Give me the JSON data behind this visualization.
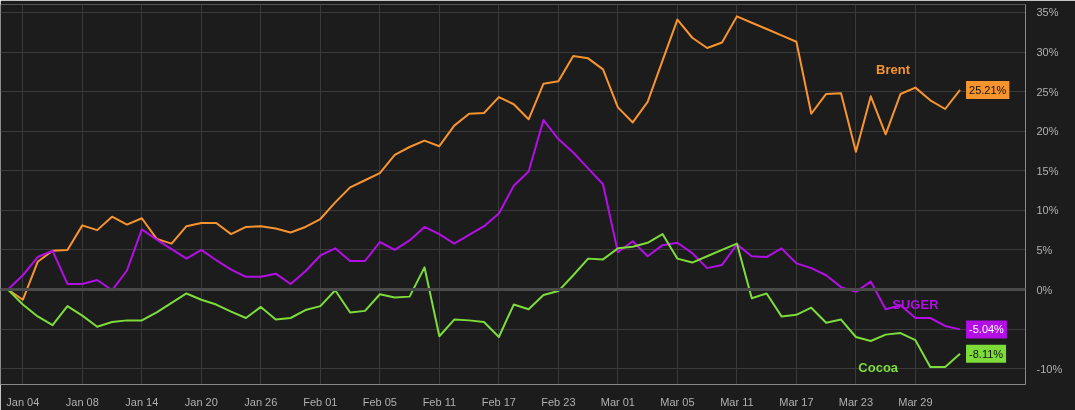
{
  "chart_data": {
    "type": "line",
    "categories": [
      null,
      "Jan 04",
      null,
      null,
      null,
      "Jan 08",
      null,
      null,
      null,
      "Jan 14",
      null,
      null,
      null,
      "Jan 20",
      null,
      null,
      null,
      "Jan 26",
      null,
      null,
      null,
      "Feb 01",
      null,
      null,
      null,
      "Feb 05",
      null,
      null,
      null,
      "Feb 11",
      null,
      null,
      null,
      "Feb 17",
      null,
      null,
      null,
      "Feb 23",
      null,
      null,
      null,
      "Mar 01",
      null,
      null,
      null,
      "Mar 05",
      null,
      null,
      null,
      "Mar 11",
      null,
      null,
      null,
      "Mar 17",
      null,
      null,
      null,
      "Mar 23",
      null,
      null,
      null,
      "Mar 29",
      null,
      null,
      null
    ],
    "series": [
      {
        "name": "Brent",
        "color": "#f7942e",
        "values": [
          0,
          -1.3,
          3.5,
          4.9,
          5.0,
          8.1,
          7.5,
          9.2,
          8.2,
          9.0,
          6.4,
          5.8,
          8.0,
          8.4,
          8.4,
          7.0,
          7.9,
          8.0,
          7.7,
          7.2,
          7.9,
          8.9,
          11.0,
          12.9,
          13.8,
          14.7,
          17.0,
          18.0,
          18.8,
          18.1,
          20.7,
          22.2,
          22.3,
          24.3,
          23.4,
          21.5,
          26.0,
          26.3,
          29.5,
          29.2,
          27.8,
          23.0,
          21.1,
          23.7,
          28.9,
          34.1,
          31.8,
          30.5,
          31.2,
          34.5,
          33.7,
          32.9,
          32.1,
          31.3,
          22.2,
          24.7,
          24.8,
          17.4,
          24.4,
          19.6,
          24.7,
          25.5,
          23.9,
          22.8,
          25.21
        ],
        "value_labels": [
          null,
          null,
          null,
          null,
          null,
          null,
          null,
          null,
          null,
          null,
          null,
          null,
          null,
          null,
          null,
          null,
          null,
          null,
          null,
          null,
          null,
          null,
          null,
          null,
          null,
          null,
          null,
          null,
          null,
          null,
          null,
          null,
          null,
          null,
          null,
          null,
          null,
          null,
          null,
          null,
          null,
          null,
          null,
          null,
          null,
          null,
          null,
          null,
          null,
          null,
          null,
          null,
          null,
          null,
          null,
          null,
          null,
          null,
          null,
          null,
          null,
          null,
          null,
          null,
          "25.21%"
        ]
      },
      {
        "name": "SUGER",
        "color": "#b40ee6",
        "values": [
          0,
          1.8,
          4.1,
          4.9,
          0.7,
          0.7,
          1.2,
          -0.1,
          2.4,
          7.6,
          6.3,
          5.1,
          3.9,
          5.0,
          3.7,
          2.5,
          1.6,
          1.6,
          2.0,
          0.7,
          2.3,
          4.3,
          5.2,
          3.6,
          3.6,
          6.0,
          5.0,
          6.2,
          7.9,
          7.0,
          5.8,
          6.9,
          8.0,
          9.6,
          13.1,
          14.9,
          21.4,
          19.0,
          17.3,
          15.3,
          13.3,
          4.7,
          6.1,
          4.2,
          5.6,
          5.9,
          4.6,
          2.7,
          3.1,
          5.7,
          4.2,
          4.1,
          5.2,
          3.3,
          2.7,
          1.8,
          0.3,
          -0.3,
          1.0,
          -2.5,
          -2.0,
          -3.6,
          -3.6,
          -4.6,
          -5.04
        ],
        "value_labels": [
          null,
          null,
          null,
          null,
          null,
          null,
          null,
          null,
          null,
          null,
          null,
          null,
          null,
          null,
          null,
          null,
          null,
          null,
          null,
          null,
          null,
          null,
          null,
          null,
          null,
          null,
          null,
          null,
          null,
          null,
          null,
          null,
          null,
          null,
          null,
          null,
          null,
          null,
          null,
          null,
          null,
          null,
          null,
          null,
          null,
          null,
          null,
          null,
          null,
          null,
          null,
          null,
          null,
          null,
          null,
          null,
          null,
          null,
          null,
          null,
          null,
          null,
          null,
          null,
          "-5.04%"
        ]
      },
      {
        "name": "Cocoa",
        "color": "#7ddc3a",
        "values": [
          0,
          -1.9,
          -3.4,
          -4.5,
          -2.1,
          -3.3,
          -4.7,
          -4.1,
          -3.9,
          -3.9,
          -2.9,
          -1.7,
          -0.5,
          -1.3,
          -1.9,
          -2.8,
          -3.6,
          -2.2,
          -3.8,
          -3.6,
          -2.6,
          -2.1,
          -0.1,
          -2.9,
          -2.7,
          -0.6,
          -1.0,
          -0.9,
          2.8,
          -5.9,
          -3.8,
          -3.9,
          -4.1,
          -6.0,
          -1.9,
          -2.5,
          -0.7,
          -0.2,
          1.8,
          3.9,
          3.8,
          5.2,
          5.4,
          5.9,
          7.0,
          3.9,
          3.4,
          4.2,
          5.0,
          5.8,
          -1.1,
          -0.5,
          -3.4,
          -3.2,
          -2.3,
          -4.2,
          -3.8,
          -6.0,
          -6.5,
          -5.7,
          -5.5,
          -6.4,
          -9.8,
          -9.8,
          -8.11
        ],
        "value_labels": [
          null,
          null,
          null,
          null,
          null,
          null,
          null,
          null,
          null,
          null,
          null,
          null,
          null,
          null,
          null,
          null,
          null,
          null,
          null,
          null,
          null,
          null,
          null,
          null,
          null,
          null,
          null,
          null,
          null,
          null,
          null,
          null,
          null,
          null,
          null,
          null,
          null,
          null,
          null,
          null,
          null,
          null,
          null,
          null,
          null,
          null,
          null,
          null,
          null,
          null,
          null,
          null,
          null,
          null,
          null,
          null,
          null,
          null,
          null,
          null,
          null,
          null,
          null,
          null,
          "-8.11%"
        ]
      }
    ],
    "ylim": [
      -12,
      36
    ],
    "yticks": [
      {
        "value": -10,
        "label": "-10%"
      },
      {
        "value": -5,
        "label": null
      },
      {
        "value": 0,
        "label": "0%"
      },
      {
        "value": 5,
        "label": "5%"
      },
      {
        "value": 10,
        "label": "10%"
      },
      {
        "value": 15,
        "label": "15%"
      },
      {
        "value": 20,
        "label": "20%"
      },
      {
        "value": 25,
        "label": "25%"
      },
      {
        "value": 30,
        "label": "30%"
      },
      {
        "value": 35,
        "label": "35%"
      }
    ],
    "ref_lines": [
      {
        "axis": "y",
        "value": 0,
        "color": "#4a4a4a"
      }
    ],
    "grid": true,
    "legend": false
  }
}
